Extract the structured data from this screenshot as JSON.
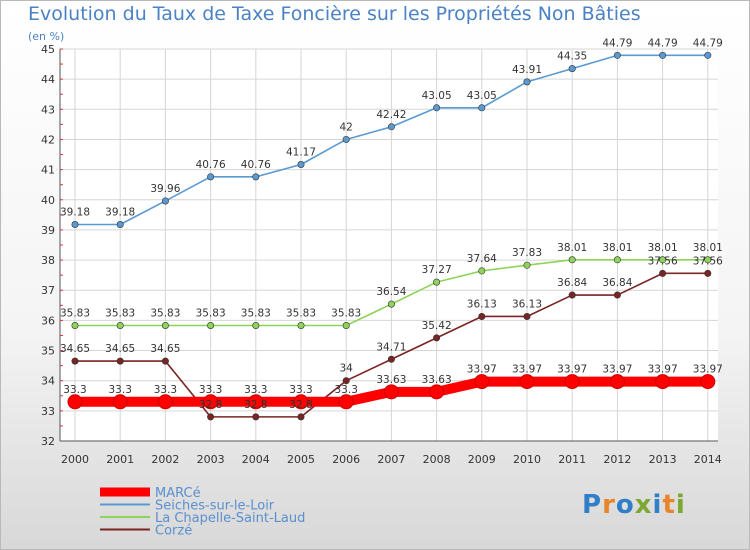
{
  "title": "Evolution du Taux de Taxe Foncière sur les Propriétés Non Bâties",
  "unit_label": "(en %)",
  "logo": {
    "text": "Proxiti",
    "colors": [
      "#2e7ec8",
      "#e8842a",
      "#2e7ec8",
      "#7aa830",
      "#2e7ec8",
      "#e8842a",
      "#7aa830"
    ]
  },
  "chart_data": {
    "type": "line",
    "title": "Evolution du Taux de Taxe Foncière sur les Propriétés Non Bâties",
    "ylabel": "(en %)",
    "xlabel": "",
    "ylim": [
      32,
      45
    ],
    "yticks": [
      "32",
      "33",
      "34",
      "35",
      "36",
      "37",
      "38",
      "39",
      "40",
      "41",
      "42",
      "43",
      "44",
      "45"
    ],
    "x": [
      "2000",
      "2001",
      "2002",
      "2003",
      "2004",
      "2005",
      "2006",
      "2007",
      "2008",
      "2009",
      "2010",
      "2011",
      "2012",
      "2013",
      "2014"
    ],
    "grid": true,
    "legend_position": "bottom-left",
    "series": [
      {
        "name": "MARCé",
        "color": "#ff0000",
        "values": [
          33.3,
          33.3,
          33.3,
          33.3,
          33.3,
          33.3,
          33.3,
          33.63,
          33.63,
          33.97,
          33.97,
          33.97,
          33.97,
          33.97,
          33.97
        ],
        "labels": [
          "33.3",
          "33.3",
          "33.3",
          "33.3",
          "33.3",
          "33.3",
          "33.3",
          "33.63",
          "33.63",
          "33.97",
          "33.97",
          "33.97",
          "33.97",
          "33.97",
          "33.97"
        ]
      },
      {
        "name": "Seiches-sur-le-Loir",
        "color": "#5a9ad2",
        "values": [
          39.18,
          39.18,
          39.96,
          40.76,
          40.76,
          41.17,
          42,
          42.42,
          43.05,
          43.05,
          43.91,
          44.35,
          44.79,
          44.79,
          44.79
        ],
        "labels": [
          "39.18",
          "39.18",
          "39.96",
          "40.76",
          "40.76",
          "41.17",
          "42",
          "42.42",
          "43.05",
          "43.05",
          "43.91",
          "44.35",
          "44.79",
          "44.79",
          "44.79"
        ]
      },
      {
        "name": "La Chapelle-Saint-Laud",
        "color": "#8ed45a",
        "values": [
          35.83,
          35.83,
          35.83,
          35.83,
          35.83,
          35.83,
          35.83,
          36.54,
          37.27,
          37.64,
          37.83,
          38.01,
          38.01,
          38.01,
          38.01
        ],
        "labels": [
          "35.83",
          "35.83",
          "35.83",
          "35.83",
          "35.83",
          "35.83",
          "35.83",
          "36.54",
          "37.27",
          "37.64",
          "37.83",
          "38.01",
          "38.01",
          "38.01",
          "38.01"
        ]
      },
      {
        "name": "Corzé",
        "color": "#7a2424",
        "values": [
          34.65,
          34.65,
          34.65,
          32.8,
          32.8,
          32.8,
          34,
          34.71,
          35.42,
          36.13,
          36.13,
          36.84,
          36.84,
          37.56,
          37.56
        ],
        "labels": [
          "34.65",
          "34.65",
          "34.65",
          "32.8",
          "32.8",
          "32.8",
          "34",
          "34.71",
          "35.42",
          "36.13",
          "36.13",
          "36.84",
          "36.84",
          "37.56",
          "37.56"
        ]
      }
    ]
  }
}
